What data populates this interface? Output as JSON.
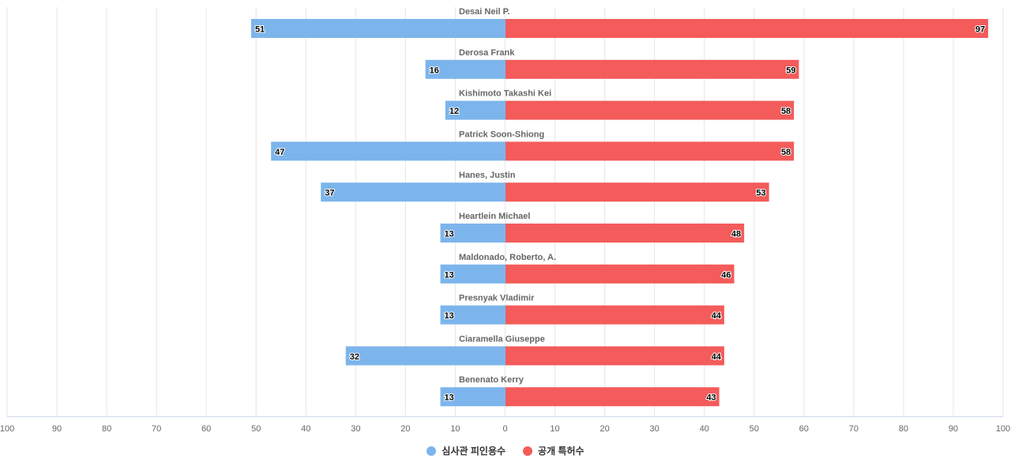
{
  "chart_data": {
    "type": "bar",
    "orientation": "horizontal-diverging",
    "categories": [
      "Desai Neil P.",
      "Derosa Frank",
      "Kishimoto Takashi Kei",
      "Patrick Soon-Shiong",
      "Hanes, Justin",
      "Heartlein Michael",
      "Maldonado, Roberto, A.",
      "Presnyak Vladimir",
      "Ciaramella Giuseppe",
      "Benenato Kerry"
    ],
    "series": [
      {
        "name": "심사관 피인용수",
        "side": "left",
        "color": "#7cb5ec",
        "values": [
          51,
          16,
          12,
          47,
          37,
          13,
          13,
          13,
          32,
          13
        ]
      },
      {
        "name": "공개 특허수",
        "side": "right",
        "color": "#f45b5b",
        "values": [
          97,
          59,
          58,
          58,
          53,
          48,
          46,
          44,
          44,
          43
        ]
      }
    ],
    "xlim": [
      -100,
      100
    ],
    "x_tick_labels": [
      "100",
      "90",
      "80",
      "70",
      "60",
      "50",
      "40",
      "30",
      "20",
      "10",
      "0",
      "10",
      "20",
      "30",
      "40",
      "50",
      "60",
      "70",
      "80",
      "90",
      "100"
    ],
    "grid": true,
    "legend_position": "bottom-center",
    "data_labels": true
  }
}
